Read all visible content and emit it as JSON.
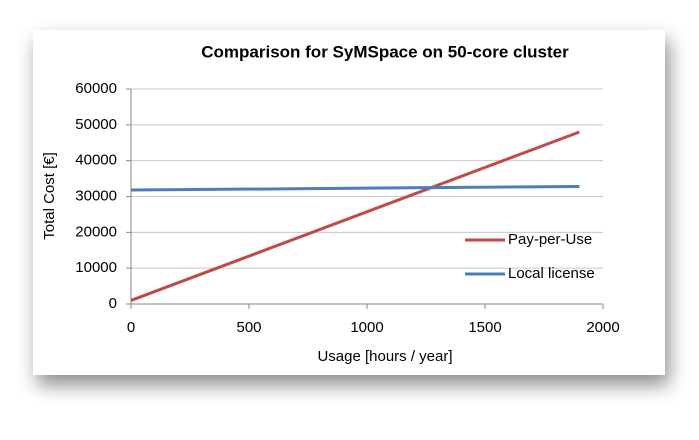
{
  "chart_data": {
    "type": "line",
    "title": "Comparison for SyMSpace on 50-core cluster",
    "x_label": "Usage [hours / year]",
    "y_label": "Total Cost [€]",
    "x": [
      0,
      1900
    ],
    "series": [
      {
        "name": "Pay-per-Use",
        "color": "#be4b48",
        "values": [
          1000,
          48000
        ]
      },
      {
        "name": "Local license",
        "color": "#4a7ebb",
        "values": [
          31800,
          32800
        ]
      }
    ],
    "xlim": [
      0,
      2000
    ],
    "xticks": [
      0,
      500,
      1000,
      1500,
      2000
    ],
    "ylim": [
      0,
      60000
    ],
    "yticks": [
      0,
      10000,
      20000,
      30000,
      40000,
      50000,
      60000
    ],
    "grid": true,
    "legend": "right"
  }
}
